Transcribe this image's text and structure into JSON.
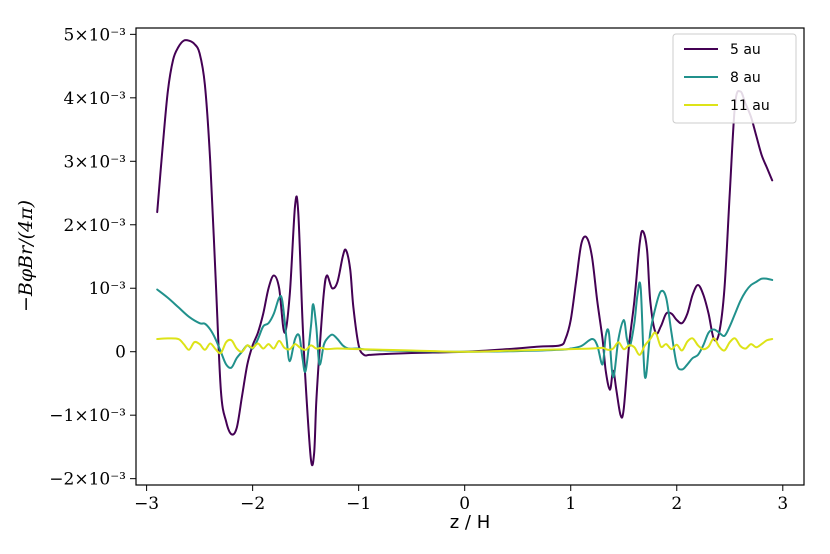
{
  "chart_data": {
    "type": "line",
    "xlabel": "z / H",
    "ylabel": "−BφBr/(4π)",
    "xlim": [
      -3.1,
      3.2
    ],
    "ylim": [
      -0.0021,
      0.0051
    ],
    "xticks": [
      -3,
      -2,
      -1,
      0,
      1,
      2,
      3
    ],
    "xtick_labels": [
      "−3",
      "−2",
      "−1",
      "0",
      "1",
      "2",
      "3"
    ],
    "yticks": [
      -0.002,
      -0.001,
      0,
      0.001,
      0.002,
      0.003,
      0.004,
      0.005
    ],
    "ytick_labels": [
      "−2×10⁻³",
      "−1×10⁻³",
      "0",
      "10⁻³",
      "2×10⁻³",
      "3×10⁻³",
      "4×10⁻³",
      "5×10⁻³"
    ],
    "grid": false,
    "legend_position": "top-right",
    "series": [
      {
        "name": "5 au",
        "color": "#440154",
        "x": [
          -2.9,
          -2.85,
          -2.8,
          -2.75,
          -2.7,
          -2.65,
          -2.6,
          -2.55,
          -2.5,
          -2.45,
          -2.4,
          -2.35,
          -2.3,
          -2.25,
          -2.2,
          -2.15,
          -2.1,
          -2.05,
          -2.0,
          -1.95,
          -1.9,
          -1.85,
          -1.8,
          -1.75,
          -1.7,
          -1.65,
          -1.6,
          -1.57,
          -1.53,
          -1.5,
          -1.45,
          -1.42,
          -1.4,
          -1.37,
          -1.33,
          -1.3,
          -1.25,
          -1.2,
          -1.15,
          -1.12,
          -1.08,
          -1.05,
          -1.0,
          -0.95,
          -0.9,
          -0.8,
          -0.5,
          0.0,
          0.4,
          0.7,
          0.9,
          0.95,
          1.0,
          1.05,
          1.1,
          1.15,
          1.2,
          1.25,
          1.3,
          1.33,
          1.37,
          1.4,
          1.43,
          1.47,
          1.5,
          1.55,
          1.6,
          1.65,
          1.68,
          1.72,
          1.75,
          1.8,
          1.85,
          1.9,
          1.95,
          2.0,
          2.05,
          2.1,
          2.15,
          2.2,
          2.25,
          2.3,
          2.35,
          2.4,
          2.45,
          2.5,
          2.55,
          2.6,
          2.65,
          2.7,
          2.75,
          2.8,
          2.85,
          2.9
        ],
        "values": [
          0.0022,
          0.0032,
          0.0041,
          0.0046,
          0.0048,
          0.0049,
          0.0049,
          0.00485,
          0.0047,
          0.0042,
          0.003,
          0.0012,
          -0.0006,
          -0.0011,
          -0.0013,
          -0.0012,
          -0.0007,
          -0.0002,
          0.0001,
          0.0003,
          0.0006,
          0.001,
          0.0012,
          0.001,
          0.0003,
          0.0009,
          0.0023,
          0.0022,
          0.0005,
          -0.0005,
          -0.0017,
          -0.0016,
          -0.0008,
          0.0,
          0.0009,
          0.0012,
          0.001,
          0.0011,
          0.0015,
          0.0016,
          0.0013,
          0.0007,
          0.0001,
          -5e-05,
          -5e-05,
          -4e-05,
          -2e-05,
          0.0,
          4e-05,
          8e-05,
          0.0001,
          0.0002,
          0.0005,
          0.0011,
          0.0017,
          0.0018,
          0.0015,
          0.0008,
          0.0002,
          -0.0003,
          -0.0006,
          -0.0003,
          -0.0006,
          -0.001,
          -0.0009,
          0.0001,
          0.0008,
          0.0017,
          0.0019,
          0.0016,
          0.0008,
          0.0003,
          0.0004,
          0.0006,
          0.0006,
          0.0005,
          0.00045,
          0.0006,
          0.0009,
          0.00105,
          0.0009,
          0.0006,
          0.0002,
          0.0003,
          0.001,
          0.0025,
          0.0039,
          0.0041,
          0.0039,
          0.0037,
          0.0034,
          0.0031,
          0.0029,
          0.0027
        ]
      },
      {
        "name": "8 au",
        "color": "#21918c",
        "x": [
          -2.9,
          -2.8,
          -2.7,
          -2.6,
          -2.5,
          -2.45,
          -2.4,
          -2.35,
          -2.3,
          -2.25,
          -2.2,
          -2.15,
          -2.1,
          -2.05,
          -2.0,
          -1.95,
          -1.9,
          -1.85,
          -1.8,
          -1.75,
          -1.72,
          -1.68,
          -1.65,
          -1.6,
          -1.56,
          -1.53,
          -1.5,
          -1.45,
          -1.43,
          -1.4,
          -1.37,
          -1.33,
          -1.3,
          -1.25,
          -1.2,
          -1.15,
          -1.1,
          -1.0,
          -0.9,
          -0.5,
          0.0,
          0.5,
          0.9,
          1.0,
          1.1,
          1.2,
          1.25,
          1.3,
          1.33,
          1.36,
          1.4,
          1.45,
          1.5,
          1.53,
          1.56,
          1.6,
          1.63,
          1.66,
          1.7,
          1.75,
          1.8,
          1.85,
          1.9,
          1.95,
          2.0,
          2.05,
          2.1,
          2.15,
          2.2,
          2.25,
          2.3,
          2.35,
          2.4,
          2.45,
          2.5,
          2.55,
          2.6,
          2.65,
          2.7,
          2.75,
          2.8,
          2.85,
          2.9
        ],
        "values": [
          0.00098,
          0.00085,
          0.0007,
          0.00055,
          0.00045,
          0.00044,
          0.00035,
          0.0002,
          0.0,
          -0.0002,
          -0.00025,
          -0.0001,
          0.0,
          0.0001,
          5e-05,
          0.0002,
          0.0004,
          0.00045,
          0.0006,
          0.00085,
          0.0008,
          0.0002,
          -0.00015,
          0.0002,
          0.00025,
          -0.0001,
          -0.0003,
          0.0004,
          0.00075,
          0.0004,
          -0.0002,
          0.0001,
          0.0002,
          0.00027,
          0.0002,
          0.0001,
          5e-05,
          5e-05,
          3e-05,
          1e-05,
          0.0,
          1e-05,
          3e-05,
          5e-05,
          9e-05,
          0.0002,
          0.0001,
          -0.0002,
          0.00025,
          0.0003,
          -0.0004,
          0.0002,
          0.0005,
          0.0002,
          0.0001,
          0.00045,
          0.0009,
          0.001,
          -0.0004,
          0.0003,
          0.0007,
          0.00095,
          0.00085,
          0.0003,
          -0.0002,
          -0.00028,
          -0.0002,
          -0.0001,
          -5e-05,
          0.0001,
          0.0003,
          0.00035,
          0.0003,
          0.00025,
          0.0004,
          0.0006,
          0.0008,
          0.00095,
          0.00105,
          0.0011,
          0.00115,
          0.00115,
          0.00113
        ]
      },
      {
        "name": "11 au",
        "color": "#dde318",
        "x": [
          -2.9,
          -2.8,
          -2.7,
          -2.65,
          -2.6,
          -2.55,
          -2.5,
          -2.45,
          -2.4,
          -2.35,
          -2.3,
          -2.25,
          -2.2,
          -2.15,
          -2.1,
          -2.05,
          -2.0,
          -1.95,
          -1.9,
          -1.85,
          -1.8,
          -1.75,
          -1.7,
          -1.65,
          -1.6,
          -1.55,
          -1.5,
          -1.45,
          -1.4,
          -1.35,
          -1.3,
          -1.2,
          -1.0,
          -0.5,
          0.0,
          0.5,
          1.0,
          1.2,
          1.3,
          1.35,
          1.4,
          1.45,
          1.5,
          1.55,
          1.6,
          1.65,
          1.7,
          1.75,
          1.8,
          1.85,
          1.9,
          1.95,
          2.0,
          2.05,
          2.1,
          2.15,
          2.2,
          2.25,
          2.3,
          2.35,
          2.4,
          2.45,
          2.5,
          2.55,
          2.6,
          2.65,
          2.7,
          2.75,
          2.8,
          2.85,
          2.9
        ],
        "values": [
          0.0002,
          0.00021,
          0.0002,
          0.00012,
          3e-05,
          0.00015,
          0.00012,
          3e-05,
          0.00013,
          4e-05,
          -2e-05,
          0.00015,
          0.00018,
          5e-05,
          0.0,
          0.0001,
          6e-05,
          0.00013,
          5e-05,
          0.00012,
          5e-05,
          0.00017,
          6e-05,
          4e-05,
          0.00012,
          6e-05,
          3e-05,
          0.0001,
          5e-05,
          6e-05,
          4e-05,
          5e-05,
          4e-05,
          2e-05,
          0.0,
          2e-05,
          4e-05,
          5e-05,
          6e-05,
          3e-05,
          5e-05,
          0.00015,
          4e-05,
          0.0001,
          7e-05,
          -5e-05,
          0.0001,
          0.0002,
          0.0003,
          8e-05,
          0.00012,
          4e-05,
          0.00011,
          2e-05,
          0.00016,
          0.00021,
          0.0001,
          4e-05,
          8e-05,
          0.00021,
          8e-05,
          2e-05,
          0.00015,
          0.00021,
          9e-05,
          5e-05,
          0.00012,
          7e-05,
          0.00012,
          0.00018,
          0.0002
        ]
      }
    ]
  }
}
